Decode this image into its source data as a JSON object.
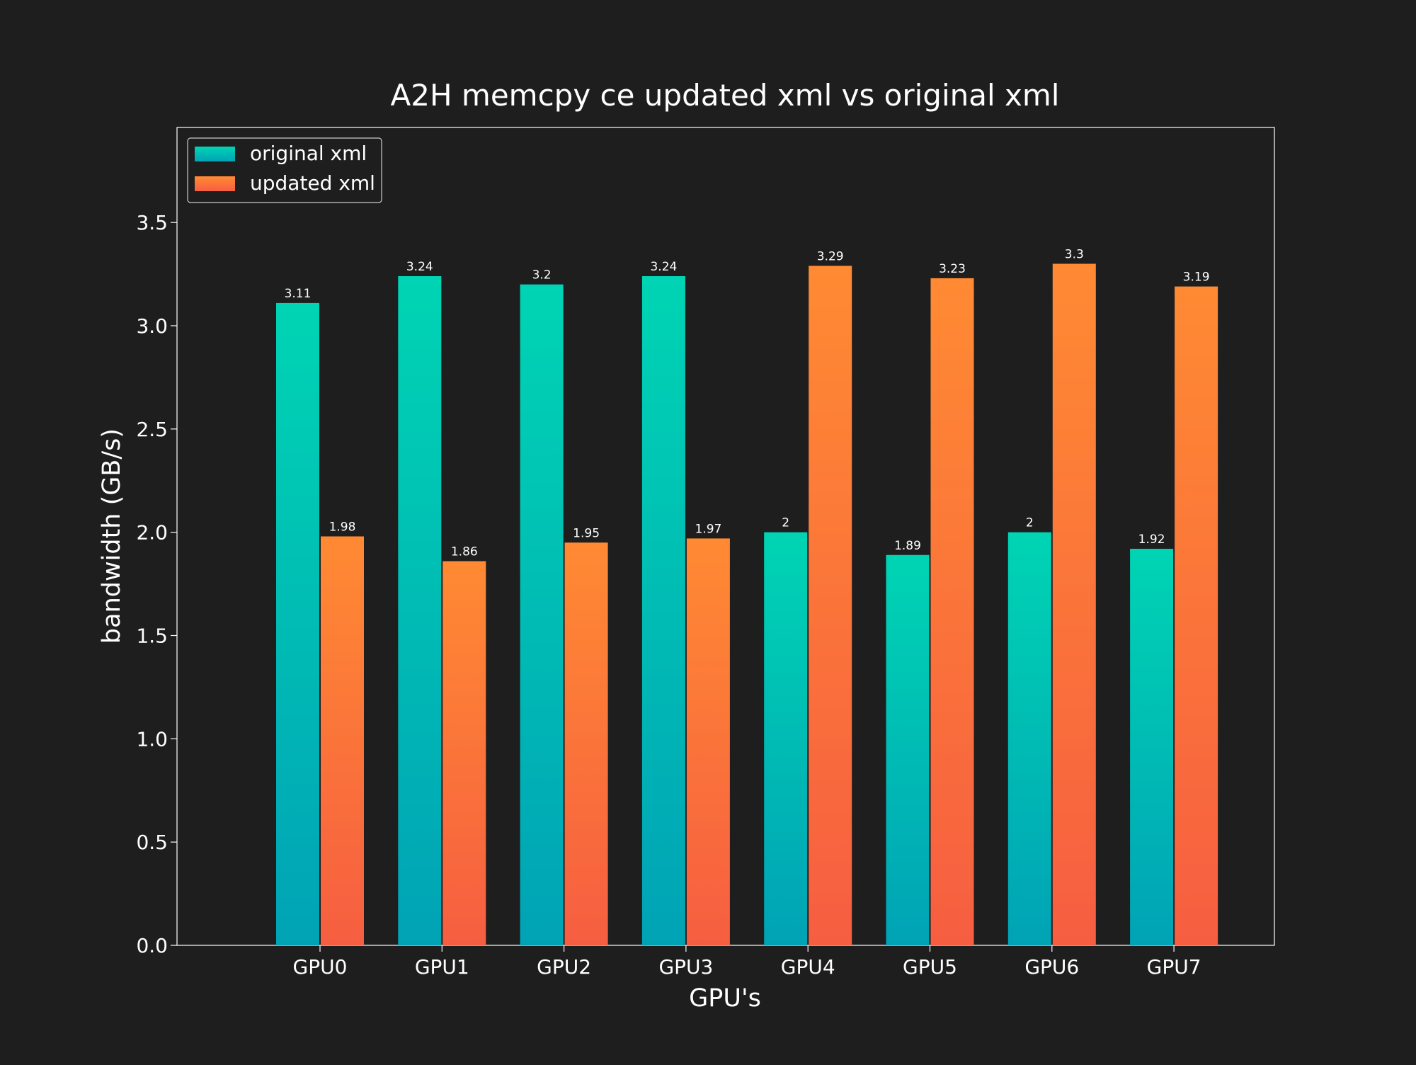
{
  "chart_data": {
    "type": "bar",
    "title": "A2H memcpy ce updated xml vs original xml",
    "xlabel": "GPU's",
    "ylabel": "bandwidth (GB/s)",
    "categories": [
      "GPU0",
      "GPU1",
      "GPU2",
      "GPU3",
      "GPU4",
      "GPU5",
      "GPU6",
      "GPU7"
    ],
    "series": [
      {
        "name": "original xml",
        "values": [
          3.11,
          3.24,
          3.2,
          3.24,
          2,
          1.89,
          2,
          1.92
        ],
        "labels": [
          "3.11",
          "3.24",
          "3.2",
          "3.24",
          "2",
          "1.89",
          "2",
          "1.92"
        ],
        "color_top": "#00d4b4",
        "color_bottom": "#00a3b5"
      },
      {
        "name": "updated xml",
        "values": [
          1.98,
          1.86,
          1.95,
          1.97,
          3.29,
          3.23,
          3.3,
          3.19
        ],
        "labels": [
          "1.98",
          "1.86",
          "1.95",
          "1.97",
          "3.29",
          "3.23",
          "3.3",
          "3.19"
        ],
        "color_top": "#ff8a33",
        "color_bottom": "#f65e41"
      }
    ],
    "ylim": [
      0,
      3.96
    ],
    "yticks": [
      0,
      0.5,
      1.0,
      1.5,
      2.0,
      2.5,
      3.0,
      3.5
    ],
    "ytick_labels": [
      "0.0",
      "0.5",
      "1.0",
      "1.5",
      "2.0",
      "2.5",
      "3.0",
      "3.5"
    ],
    "grid": false,
    "legend_position": "top-left",
    "background_color": "#1e1e1e",
    "text_color": "#ffffff"
  }
}
